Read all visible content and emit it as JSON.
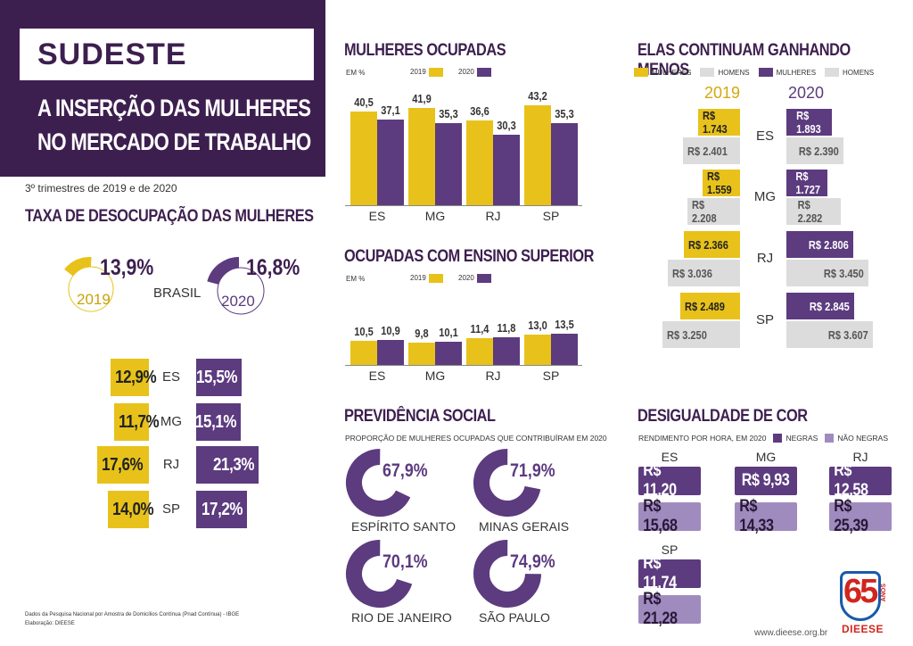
{
  "header": {
    "title": "SUDESTE",
    "subtitle_line1": "A INSERÇÃO DAS MULHERES",
    "subtitle_line2": "NO MERCADO DE TRABALHO",
    "period": "3º trimestres de 2019 e de 2020"
  },
  "unemployment": {
    "title": "TAXA DE DESOCUPAÇÃO DAS MULHERES",
    "brasil_label": "BRASIL",
    "year_2019": "2019",
    "year_2020": "2020",
    "brasil_2019": "13,9%",
    "brasil_2020": "16,8%",
    "brasil_2019_value": 13.9,
    "brasil_2020_value": 16.8,
    "rows": [
      {
        "state": "ES",
        "v2019": "12,9%",
        "v2020": "15,5%",
        "n2019": 12.9,
        "n2020": 15.5
      },
      {
        "state": "MG",
        "v2019": "11,7%",
        "v2020": "15,1%",
        "n2019": 11.7,
        "n2020": 15.1
      },
      {
        "state": "RJ",
        "v2019": "17,6%",
        "v2020": "21,3%",
        "n2019": 17.6,
        "n2020": 21.3
      },
      {
        "state": "SP",
        "v2019": "14,0%",
        "v2020": "17,2%",
        "n2019": 14.0,
        "n2020": 17.2
      }
    ]
  },
  "chart_data": [
    {
      "type": "bar",
      "title": "MULHERES OCUPADAS",
      "ylabel": "EM %",
      "categories": [
        "ES",
        "MG",
        "RJ",
        "SP"
      ],
      "series": [
        {
          "name": "2019",
          "values": [
            40.5,
            41.9,
            36.6,
            43.2
          ],
          "labels": [
            "40,5",
            "41,9",
            "36,6",
            "43,2"
          ]
        },
        {
          "name": "2020",
          "values": [
            37.1,
            35.3,
            30.3,
            35.3
          ],
          "labels": [
            "37,1",
            "35,3",
            "30,3",
            "35,3"
          ]
        }
      ]
    },
    {
      "type": "bar",
      "title": "OCUPADAS COM ENSINO SUPERIOR",
      "ylabel": "EM %",
      "categories": [
        "ES",
        "MG",
        "RJ",
        "SP"
      ],
      "series": [
        {
          "name": "2019",
          "values": [
            10.5,
            9.8,
            11.4,
            13.0
          ],
          "labels": [
            "10,5",
            "9,8",
            "11,4",
            "13,0"
          ]
        },
        {
          "name": "2020",
          "values": [
            10.9,
            10.1,
            11.8,
            13.5
          ],
          "labels": [
            "10,9",
            "10,1",
            "11,8",
            "13,5"
          ]
        }
      ]
    }
  ],
  "earnings": {
    "title": "ELAS CONTINUAM GANHANDO MENOS",
    "legend": [
      "MULHERES",
      "HOMENS",
      "MULHERES",
      "HOMENS"
    ],
    "year_2019": "2019",
    "year_2020": "2020",
    "rows": [
      {
        "state": "ES",
        "w2019": "R$ 1.743",
        "m2019": "R$ 2.401",
        "w2020": "R$ 1.893",
        "m2020": "R$ 2.390",
        "nw2019": 1743,
        "nm2019": 2401,
        "nw2020": 1893,
        "nm2020": 2390
      },
      {
        "state": "MG",
        "w2019": "R$ 1.559",
        "m2019": "R$ 2.208",
        "w2020": "R$ 1.727",
        "m2020": "R$ 2.282",
        "nw2019": 1559,
        "nm2019": 2208,
        "nw2020": 1727,
        "nm2020": 2282
      },
      {
        "state": "RJ",
        "w2019": "R$ 2.366",
        "m2019": "R$ 3.036",
        "w2020": "R$ 2.806",
        "m2020": "R$ 3.450",
        "nw2019": 2366,
        "nm2019": 3036,
        "nw2020": 2806,
        "nm2020": 3450
      },
      {
        "state": "SP",
        "w2019": "R$ 2.489",
        "m2019": "R$ 3.250",
        "w2020": "R$ 2.845",
        "m2020": "R$ 3.607",
        "nw2019": 2489,
        "nm2019": 3250,
        "nw2020": 2845,
        "nm2020": 3607
      }
    ]
  },
  "pension": {
    "title": "PREVIDÊNCIA SOCIAL",
    "subtitle": "PROPORÇÃO DE MULHERES OCUPADAS QUE CONTRIBUÍRAM EM 2020",
    "items": [
      {
        "name": "ESPÍRITO SANTO",
        "value": "67,9%",
        "n": 67.9
      },
      {
        "name": "MINAS GERAIS",
        "value": "71,9%",
        "n": 71.9
      },
      {
        "name": "RIO DE JANEIRO",
        "value": "70,1%",
        "n": 70.1
      },
      {
        "name": "SÃO PAULO",
        "value": "74,9%",
        "n": 74.9
      }
    ]
  },
  "color_gap": {
    "title": "DESIGUALDADE DE COR",
    "subtitle": "RENDIMENTO POR HORA, EM 2020",
    "legend_black": "NEGRAS",
    "legend_nonblack": "NÃO NEGRAS",
    "items": [
      {
        "state": "ES",
        "black": "R$ 11,20",
        "nonblack": "R$ 15,68"
      },
      {
        "state": "MG",
        "black": "R$ 9,93",
        "nonblack": "R$ 14,33"
      },
      {
        "state": "RJ",
        "black": "R$ 12,58",
        "nonblack": "R$ 25,39"
      },
      {
        "state": "SP",
        "black": "R$ 11,74",
        "nonblack": "R$ 21,28"
      }
    ]
  },
  "footer": {
    "source": "Dados da Pesquisa Nacional por Amostra de Domicílios Contínua (Pnad Contínua) - IBGE",
    "credit": "Elaboração: DIEESE",
    "url": "www.dieese.org.br",
    "logo_number": "65",
    "logo_anos": "ANOS",
    "logo_name": "DIEESE"
  },
  "colors": {
    "purple": "#5c3b7f",
    "dark_purple": "#3d1f4f",
    "yellow": "#e8c21a",
    "gray": "#dcdcdc",
    "light_purple": "#a08bbf"
  }
}
